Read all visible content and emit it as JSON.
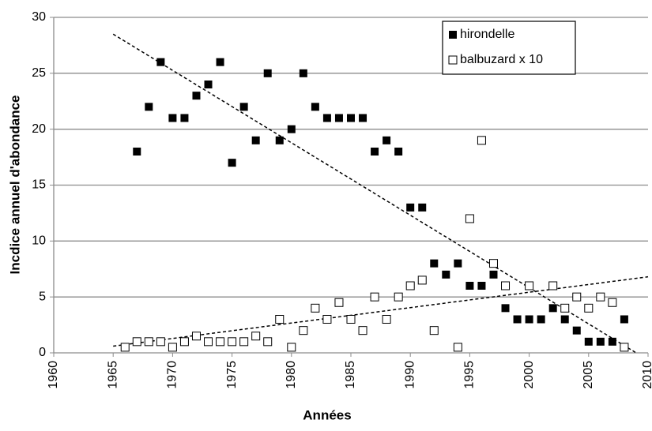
{
  "chart_data": {
    "type": "scatter",
    "x_label": "Années",
    "y_label": "Incdice annuel d'abondance",
    "xlim": [
      1960,
      2010
    ],
    "xticks": [
      1960,
      1965,
      1970,
      1975,
      1980,
      1985,
      1990,
      1995,
      2000,
      2005,
      2010
    ],
    "ylim": [
      0,
      30
    ],
    "yticks": [
      0,
      5,
      10,
      15,
      20,
      25,
      30
    ],
    "grid": true,
    "legend": "top-right",
    "series": [
      {
        "name": "hirondelle",
        "color": "#000000",
        "marker": "filled-square",
        "x": [
          1967,
          1968,
          1969,
          1970,
          1971,
          1972,
          1973,
          1974,
          1975,
          1976,
          1977,
          1978,
          1979,
          1980,
          1981,
          1982,
          1983,
          1984,
          1985,
          1986,
          1987,
          1988,
          1989,
          1990,
          1991,
          1992,
          1993,
          1994,
          1995,
          1996,
          1997,
          1998,
          1999,
          2000,
          2001,
          2002,
          2003,
          2004,
          2005,
          2006,
          2007,
          2008
        ],
        "values": [
          18,
          22,
          26,
          21,
          21,
          23,
          24,
          26,
          17,
          22,
          19,
          25,
          19,
          20,
          25,
          22,
          21,
          21,
          21,
          21,
          18,
          19,
          18,
          13,
          13,
          8,
          7,
          8,
          6,
          6,
          7,
          4,
          3,
          3,
          3,
          4,
          3,
          2,
          1,
          1,
          1,
          3
        ],
        "trendline": {
          "x": [
            1965,
            2009
          ],
          "y": [
            28.5,
            0
          ]
        }
      },
      {
        "name": "balbuzard x 10",
        "color": "#000000",
        "marker": "open-square",
        "x": [
          1966,
          1967,
          1968,
          1969,
          1970,
          1971,
          1972,
          1973,
          1974,
          1975,
          1976,
          1977,
          1978,
          1979,
          1980,
          1981,
          1982,
          1983,
          1984,
          1985,
          1986,
          1987,
          1988,
          1989,
          1990,
          1991,
          1992,
          1994,
          1995,
          1996,
          1997,
          1998,
          2000,
          2002,
          2003,
          2004,
          2005,
          2006,
          2007,
          2008
        ],
        "values": [
          0.5,
          1,
          1,
          1,
          0.5,
          1,
          1.5,
          1,
          1,
          1,
          1,
          1.5,
          1,
          3,
          0.5,
          2,
          4,
          3,
          4.5,
          3,
          2,
          5,
          3,
          5,
          6,
          6.5,
          2,
          0.5,
          12,
          19,
          8,
          6,
          6,
          6,
          4,
          5,
          4,
          5,
          4.5,
          0.5
        ],
        "trendline": {
          "x": [
            1965,
            2010
          ],
          "y": [
            0.6,
            6.8
          ]
        }
      }
    ]
  }
}
